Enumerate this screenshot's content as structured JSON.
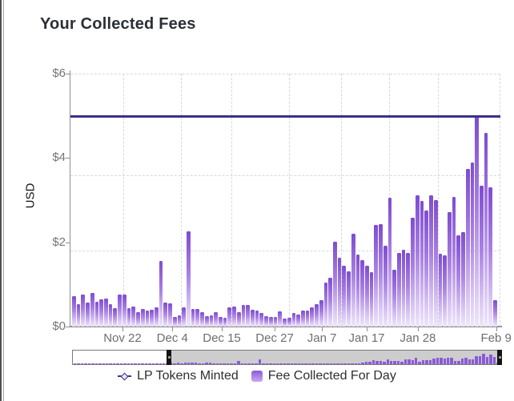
{
  "card": {
    "title": "Your Collected Fees"
  },
  "legend": {
    "items": [
      {
        "label": "LP Tokens Minted",
        "marker": "line-diamond-marker",
        "color": "#3a3189"
      },
      {
        "label": "Fee Collected For Day",
        "marker": "gradient-square-marker",
        "color": "#8d58d8"
      }
    ]
  },
  "colors": {
    "lp_line": "#3a3189",
    "bar_top": "#7e4cd0",
    "bar_bottom": "#eee6fb",
    "axis": "#8f8f8f",
    "grid": "#d8d8d8",
    "tick_text": "#757575",
    "scrollbar_selected": "#cdcdcd",
    "scrollbar_handle": "#141414"
  },
  "chart_data": {
    "type": "bar",
    "title": "Your Collected Fees",
    "xlabel": "",
    "ylabel": "USD",
    "ylim": [
      0,
      6
    ],
    "grid": "dashed",
    "legend_position": "bottom",
    "y_ticks": [
      {
        "label": "$6",
        "value": 6
      },
      {
        "label": "$4",
        "value": 4
      },
      {
        "label": "$2",
        "value": 2
      },
      {
        "label": "$0",
        "value": 0
      }
    ],
    "x_tick_labels": [
      "Nov 22",
      "Dec 4",
      "Dec 15",
      "Dec 27",
      "Jan 7",
      "Jan 17",
      "Jan 28",
      "Feb 9"
    ],
    "series": [
      {
        "name": "LP Tokens Minted",
        "type": "line",
        "style": "constant-horizontal",
        "value": 5.0,
        "color": "#3a3189"
      },
      {
        "name": "Fee Collected For Day",
        "type": "bar",
        "color": "#8d58d8",
        "values": [
          0.73,
          0.53,
          0.76,
          0.57,
          0.8,
          0.59,
          0.65,
          0.67,
          0.53,
          0.43,
          0.76,
          0.76,
          0.44,
          0.48,
          0.34,
          0.42,
          0.38,
          0.4,
          0.45,
          1.55,
          0.57,
          0.55,
          0.23,
          0.26,
          0.45,
          2.26,
          0.42,
          0.42,
          0.34,
          0.25,
          0.26,
          0.34,
          0.23,
          0.21,
          0.45,
          0.48,
          0.34,
          0.51,
          0.51,
          0.4,
          0.38,
          0.32,
          0.24,
          0.23,
          0.23,
          0.36,
          0.19,
          0.21,
          0.32,
          0.29,
          0.38,
          0.38,
          0.46,
          0.54,
          0.62,
          1.05,
          1.15,
          2.01,
          1.63,
          1.45,
          1.31,
          2.2,
          1.7,
          1.58,
          1.45,
          1.29,
          2.42,
          2.43,
          1.92,
          3.05,
          1.35,
          1.75,
          1.82,
          1.74,
          2.59,
          3.11,
          2.99,
          2.76,
          3.12,
          3.0,
          1.73,
          1.69,
          2.72,
          3.08,
          2.17,
          2.25,
          3.74,
          3.9,
          5.0,
          3.35,
          4.6,
          3.3,
          0.62
        ]
      }
    ],
    "scrollbar": {
      "lead_in_values": [
        0.08,
        0.12,
        0.06,
        0.1,
        0.15,
        0.09,
        0.07,
        0.12,
        0.18,
        0.1,
        0.08,
        0.14,
        0.1,
        0.12,
        0.16,
        0.09,
        0.11,
        0.2,
        0.13,
        0.1,
        0.15,
        0.22,
        0.12,
        0.18,
        0.25,
        0.15,
        0.2
      ],
      "selected_range": "Nov 10 - Feb 9"
    }
  }
}
